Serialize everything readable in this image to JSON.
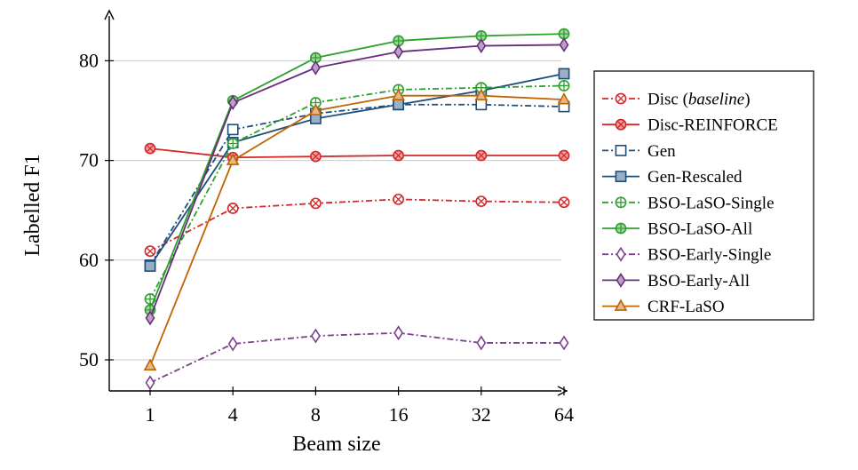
{
  "chart_data": {
    "type": "line",
    "xlabel": "Beam size",
    "ylabel": "Labelled F1",
    "categories": [
      "1",
      "4",
      "8",
      "16",
      "32",
      "64"
    ],
    "ylim": [
      46.5,
      85
    ],
    "yticks": [
      50,
      60,
      70,
      80
    ],
    "grid": "horizontal",
    "legend_position": "right",
    "series": [
      {
        "name": "Disc (baseline)",
        "name_plain": "Disc (",
        "name_italic": "baseline",
        "name_suffix": ")",
        "color": "#d62728",
        "dash": "dashdot",
        "marker": "circle-x",
        "fill": "none",
        "values": [
          60.9,
          65.2,
          65.7,
          66.1,
          65.9,
          65.8
        ]
      },
      {
        "name": "Disc-REINFORCE",
        "color": "#d62728",
        "dash": "solid",
        "marker": "circle-x",
        "fill": "filled",
        "values": [
          71.2,
          70.3,
          70.4,
          70.5,
          70.5,
          70.5
        ]
      },
      {
        "name": "Gen",
        "color": "#1f4e79",
        "dash": "dashdot",
        "marker": "square",
        "fill": "none",
        "values": [
          59.5,
          73.1,
          74.7,
          75.6,
          75.6,
          75.4
        ]
      },
      {
        "name": "Gen-Rescaled",
        "color": "#1f4e79",
        "dash": "solid",
        "marker": "square",
        "fill": "filled",
        "values": [
          59.4,
          71.8,
          74.2,
          75.6,
          77.0,
          78.7
        ]
      },
      {
        "name": "BSO-LaSO-Single",
        "color": "#2ca02c",
        "dash": "dashdot",
        "marker": "circle-plus",
        "fill": "none",
        "values": [
          56.1,
          71.7,
          75.8,
          77.1,
          77.3,
          77.5
        ]
      },
      {
        "name": "BSO-LaSO-All",
        "color": "#2ca02c",
        "dash": "solid",
        "marker": "circle-plus",
        "fill": "filled",
        "values": [
          55.0,
          76.0,
          80.3,
          82.0,
          82.5,
          82.7
        ]
      },
      {
        "name": "BSO-Early-Single",
        "color": "#7b3f8c",
        "dash": "dashdot",
        "marker": "diamond",
        "fill": "none",
        "values": [
          47.7,
          51.6,
          52.4,
          52.7,
          51.7,
          51.7
        ]
      },
      {
        "name": "BSO-Early-All",
        "color": "#6a2d7e",
        "dash": "solid",
        "marker": "diamond",
        "fill": "filled",
        "values": [
          54.2,
          75.8,
          79.3,
          80.9,
          81.5,
          81.6
        ]
      },
      {
        "name": "CRF-LaSO",
        "color": "#c06400",
        "dash": "solid",
        "marker": "triangle",
        "fill": "filled",
        "values": [
          49.4,
          70.0,
          75.0,
          76.5,
          76.5,
          76.1
        ]
      }
    ]
  }
}
